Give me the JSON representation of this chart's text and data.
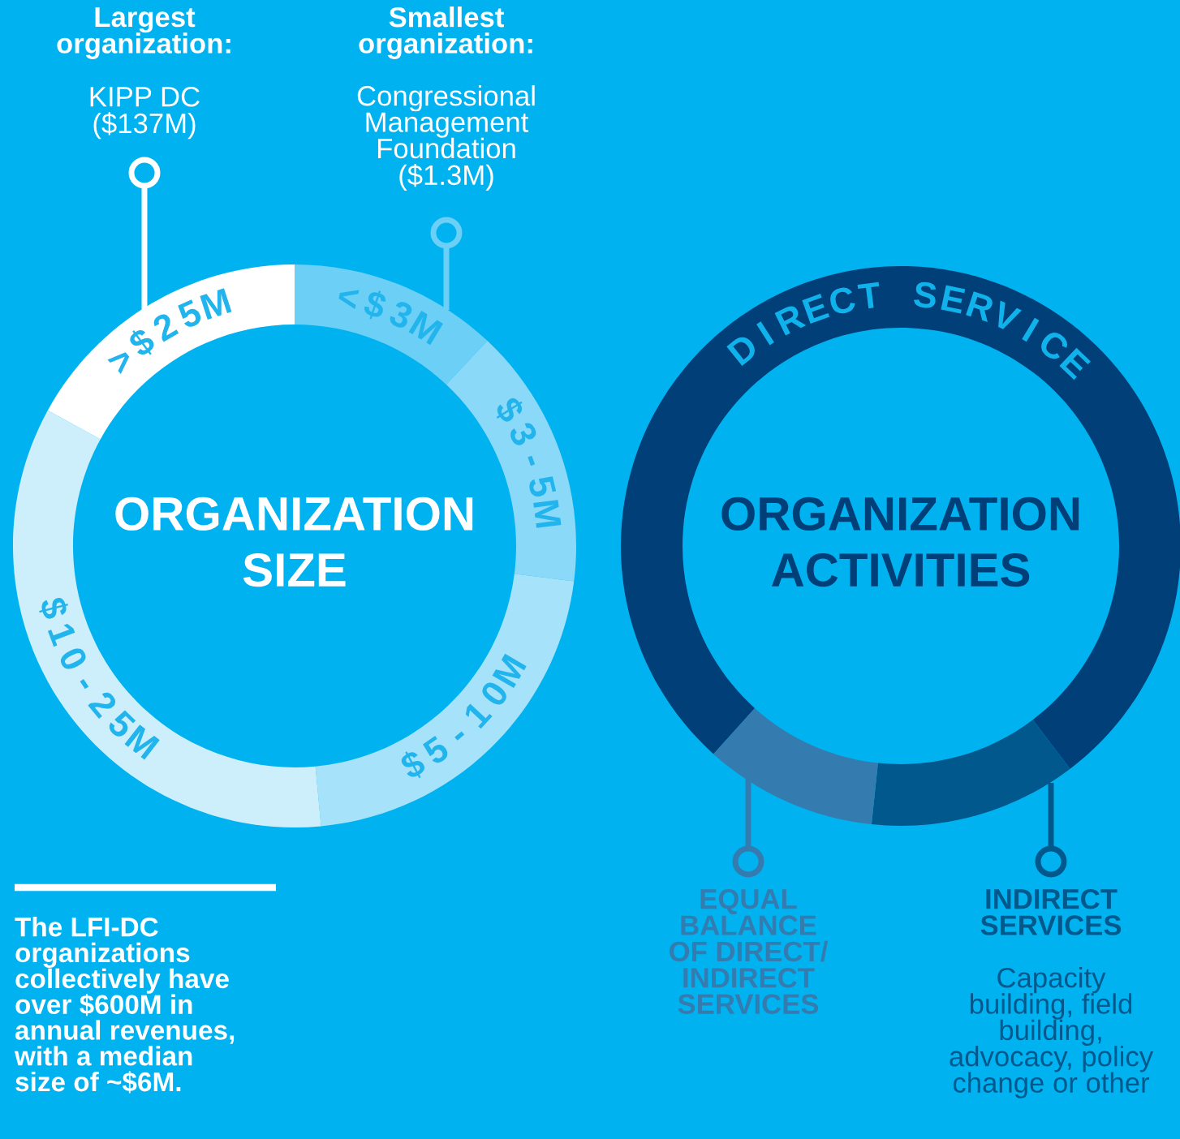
{
  "chart_data": [
    {
      "type": "donut",
      "title": "ORGANIZATION\nSIZE",
      "categories": [
        "<$3M",
        "$3-5M",
        "$5-10M",
        "$10-25M",
        ">$25M"
      ],
      "values": [
        12,
        15,
        21.5,
        34.5,
        17
      ],
      "colors": [
        "#6ccff6",
        "#8ad9f8",
        "#a6e3fa",
        "#cdeffc",
        "#ffffff"
      ],
      "annotations": [
        "Largest\norganization:",
        "KIPP DC\n($137M)",
        "Smallest\norganization:",
        "Congressional\nManagement\nFoundation\n($1.3M)",
        "The LFI-DC\norganizations\ncollectively have\nover $600M in\nannual revenues,\nwith a median\nsize of ~$6M."
      ]
    },
    {
      "type": "donut",
      "title": "ORGANIZATION\nACTIVITIES",
      "categories": [
        "DIRECT SERVICE",
        "INDIRECT\nSERVICES",
        "EQUAL\nBALANCE\nOF DIRECT/\nINDIRECT\nSERVICES"
      ],
      "values": [
        78,
        12,
        10
      ],
      "legend": "bottom",
      "colors": [
        "#003f78",
        "#00588c",
        "#347bb0"
      ],
      "annotations": [
        "Capacity\nbuilding, field\nbuilding,\nadvocacy, policy\nchange or other"
      ]
    }
  ]
}
